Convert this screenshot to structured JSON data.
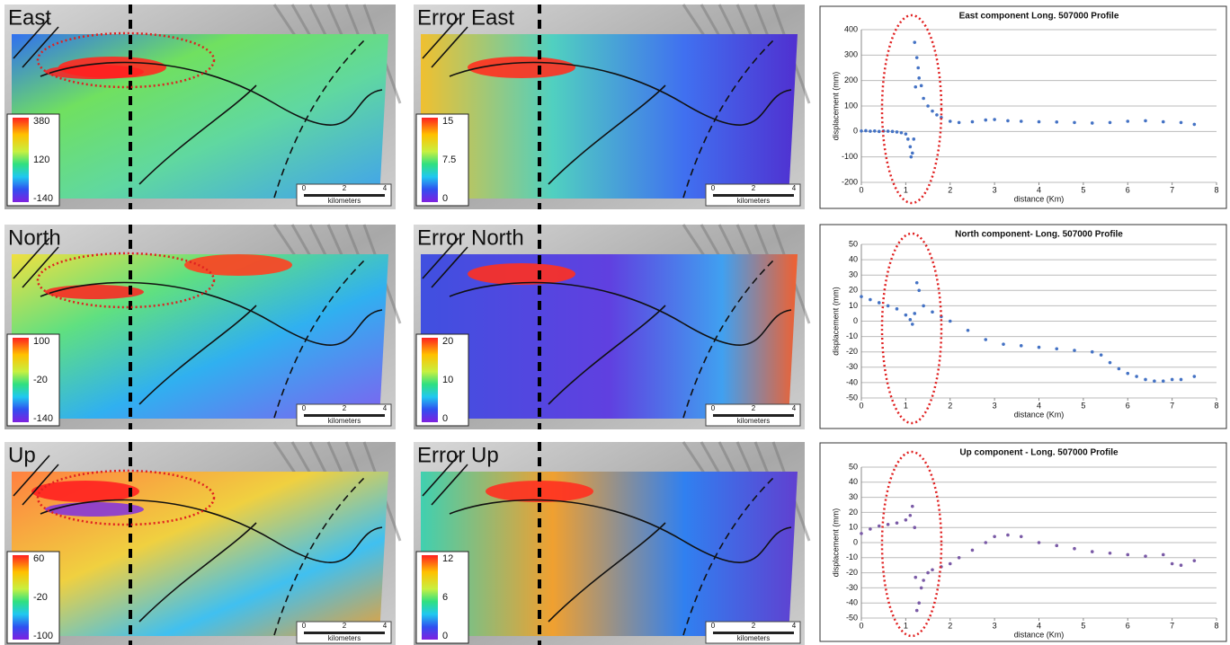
{
  "maps": [
    {
      "title": "East",
      "colorbar": [
        380,
        120,
        -140
      ]
    },
    {
      "title": "Error East",
      "colorbar": [
        15,
        7.5,
        0
      ]
    },
    {
      "title": "North",
      "colorbar": [
        100,
        -20,
        -140
      ]
    },
    {
      "title": "Error North",
      "colorbar": [
        20,
        10,
        0
      ]
    },
    {
      "title": "Up",
      "colorbar": [
        60,
        -20,
        -100
      ]
    },
    {
      "title": "Error Up",
      "colorbar": [
        12,
        6,
        0
      ]
    }
  ],
  "scale_bar": {
    "ticks": [
      0,
      2,
      4
    ],
    "unit": "kilometers"
  },
  "chart_data": [
    {
      "type": "scatter",
      "title": "East component Long. 507000 Profile",
      "x_label": "distance (Km)",
      "y_label": "displacement (mm)",
      "color": "#4472c4",
      "grid": true,
      "xlim": [
        0,
        8
      ],
      "xticks": [
        0,
        1,
        2,
        3,
        4,
        5,
        6,
        7,
        8
      ],
      "ylim": [
        -200,
        400
      ],
      "yticks": [
        -200,
        -100,
        0,
        100,
        200,
        300,
        400
      ],
      "x": [
        0,
        0.1,
        0.2,
        0.3,
        0.4,
        0.5,
        0.6,
        0.7,
        0.8,
        0.9,
        1.0,
        1.05,
        1.1,
        1.12,
        1.15,
        1.18,
        1.2,
        1.22,
        1.25,
        1.28,
        1.3,
        1.35,
        1.4,
        1.5,
        1.6,
        1.7,
        1.8,
        2.0,
        2.2,
        2.5,
        2.8,
        3.0,
        3.3,
        3.6,
        4.0,
        4.4,
        4.8,
        5.2,
        5.6,
        6.0,
        6.4,
        6.8,
        7.2,
        7.5
      ],
      "values": [
        2,
        3,
        1,
        2,
        0,
        2,
        1,
        0,
        -2,
        -5,
        -10,
        -30,
        -60,
        -100,
        -85,
        -30,
        350,
        175,
        290,
        250,
        210,
        180,
        130,
        100,
        80,
        65,
        55,
        40,
        35,
        38,
        45,
        47,
        42,
        40,
        38,
        37,
        35,
        33,
        35,
        40,
        42,
        38,
        35,
        28
      ]
    },
    {
      "type": "scatter",
      "title": "North component- Long. 507000 Profile",
      "x_label": "distance (Km)",
      "y_label": "displacement (mm)",
      "color": "#4472c4",
      "grid": true,
      "xlim": [
        0,
        8
      ],
      "xticks": [
        0,
        1,
        2,
        3,
        4,
        5,
        6,
        7,
        8
      ],
      "ylim": [
        -50,
        50
      ],
      "yticks": [
        -50,
        -40,
        -30,
        -20,
        -10,
        0,
        10,
        20,
        30,
        40,
        50
      ],
      "x": [
        0,
        0.2,
        0.4,
        0.6,
        0.8,
        1.0,
        1.1,
        1.15,
        1.2,
        1.25,
        1.3,
        1.4,
        1.6,
        1.8,
        2.0,
        2.4,
        2.8,
        3.2,
        3.6,
        4.0,
        4.4,
        4.8,
        5.2,
        5.4,
        5.6,
        5.8,
        6.0,
        6.2,
        6.4,
        6.6,
        6.8,
        7.0,
        7.2,
        7.5
      ],
      "values": [
        16,
        14,
        12,
        10,
        8,
        4,
        1,
        -2,
        5,
        25,
        20,
        10,
        6,
        3,
        0,
        -6,
        -12,
        -15,
        -16,
        -17,
        -18,
        -19,
        -20,
        -22,
        -27,
        -31,
        -34,
        -36,
        -38,
        -39,
        -39,
        -38,
        -38,
        -36
      ]
    },
    {
      "type": "scatter",
      "title": "Up component - Long. 507000 Profile",
      "x_label": "distance (Km)",
      "y_label": "displacement (mm)",
      "color": "#7a5aa6",
      "grid": true,
      "xlim": [
        0,
        8
      ],
      "xticks": [
        0,
        1,
        2,
        3,
        4,
        5,
        6,
        7,
        8
      ],
      "ylim": [
        -50,
        50
      ],
      "yticks": [
        -50,
        -40,
        -30,
        -20,
        -10,
        0,
        10,
        20,
        30,
        40,
        50
      ],
      "x": [
        0,
        0.2,
        0.4,
        0.6,
        0.8,
        1.0,
        1.1,
        1.15,
        1.2,
        1.22,
        1.25,
        1.3,
        1.35,
        1.4,
        1.5,
        1.6,
        1.8,
        2.0,
        2.2,
        2.5,
        2.8,
        3.0,
        3.3,
        3.6,
        4.0,
        4.4,
        4.8,
        5.2,
        5.6,
        6.0,
        6.4,
        6.8,
        7.0,
        7.2,
        7.5
      ],
      "values": [
        6,
        9,
        11,
        12,
        13,
        15,
        18,
        24,
        10,
        -23,
        -45,
        -40,
        -30,
        -25,
        -20,
        -18,
        -16,
        -14,
        -10,
        -5,
        0,
        4,
        5,
        4,
        0,
        -2,
        -4,
        -6,
        -7,
        -8,
        -9,
        -8,
        -14,
        -15,
        -12
      ]
    }
  ]
}
